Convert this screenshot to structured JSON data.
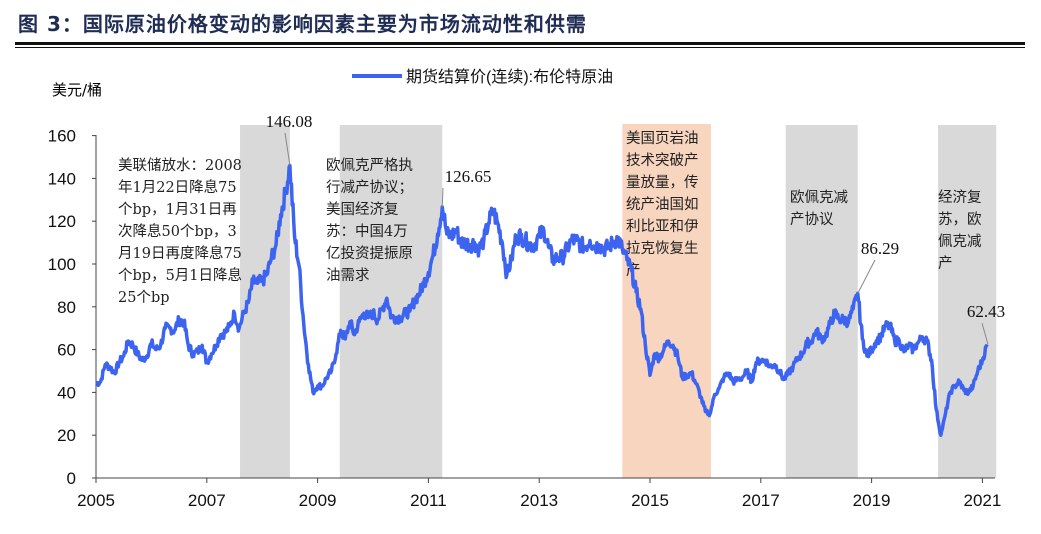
{
  "title": "图 3：国际原油价格变动的影响因素主要为市场流动性和供需",
  "chart_data": {
    "type": "line",
    "ylabel": "美元/桶",
    "xlabel": "",
    "ylim": [
      0,
      160
    ],
    "xlim": [
      2005,
      2021.2
    ],
    "yticks": [
      0,
      20,
      40,
      60,
      80,
      100,
      120,
      140,
      160
    ],
    "xticks": [
      2005,
      2007,
      2009,
      2011,
      2013,
      2015,
      2017,
      2019,
      2021
    ],
    "grid": false,
    "legend_position": "top-center",
    "series": [
      {
        "name": "期货结算价(连续):布伦特原油",
        "color": "#3c64f0",
        "start": "2005-01",
        "frequency": "monthly",
        "values": [
          44,
          45,
          53,
          52,
          49,
          54,
          57,
          64,
          62,
          58,
          55,
          57,
          63,
          60,
          62,
          70,
          70,
          69,
          74,
          73,
          62,
          58,
          59,
          62,
          54,
          58,
          62,
          67,
          68,
          71,
          77,
          70,
          77,
          82,
          92,
          91,
          92,
          95,
          103,
          109,
          123,
          133,
          146.08,
          113,
          99,
          72,
          53,
          40,
          43,
          43,
          47,
          50,
          58,
          69,
          65,
          73,
          67,
          73,
          77,
          75,
          77,
          74,
          79,
          84,
          75,
          75,
          75,
          77,
          78,
          83,
          86,
          91,
          96,
          104,
          114,
          126.65,
          114,
          113,
          116,
          110,
          110,
          109,
          110,
          107,
          111,
          119,
          125,
          119,
          110,
          95,
          102,
          113,
          113,
          111,
          109,
          109,
          113,
          116,
          108,
          102,
          103,
          103,
          107,
          111,
          111,
          109,
          108,
          111,
          108,
          109,
          107,
          108,
          110,
          112,
          107,
          102,
          97,
          87,
          79,
          62,
          48,
          58,
          56,
          60,
          64,
          62,
          57,
          47,
          48,
          49,
          44,
          38,
          31,
          30,
          39,
          42,
          47,
          49,
          45,
          46,
          47,
          50,
          45,
          54,
          55,
          55,
          52,
          53,
          50,
          46,
          49,
          52,
          56,
          58,
          63,
          64,
          69,
          65,
          66,
          72,
          77,
          74,
          74,
          73,
          79,
          86.29,
          65,
          57,
          60,
          64,
          66,
          71,
          71,
          64,
          64,
          59,
          62,
          60,
          63,
          66,
          64,
          55,
          32,
          20,
          30,
          40,
          43,
          45,
          41,
          40,
          43,
          50,
          55,
          62.43
        ]
      }
    ],
    "shaded_periods": [
      {
        "from": 2007.6,
        "to": 2008.5,
        "color": "#d9d9d9",
        "label": "美联储放水：2008年1月22日降息75个bp，1月31日再次降息50个bp，3月19日再度降息75个bp，5月1日降息25个bp"
      },
      {
        "from": 2009.4,
        "to": 2011.25,
        "color": "#d9d9d9",
        "label": "欧佩克严格执行减产协议；美国经济复苏：中国4万亿投资提振原油需求"
      },
      {
        "from": 2014.5,
        "to": 2016.1,
        "color": "#f8d5bf",
        "label": "美国页岩油技术突破产量放量，传统产油国如利比亚和伊拉克恢复生产"
      },
      {
        "from": 2017.45,
        "to": 2018.75,
        "color": "#d9d9d9",
        "label": "欧佩克减产协议"
      },
      {
        "from": 2020.2,
        "to": 2021.25,
        "color": "#d9d9d9",
        "label": "经济复苏，欧佩克减产"
      }
    ],
    "annotations": [
      {
        "text": "146.08",
        "x": 2008.5,
        "y": 146.08
      },
      {
        "text": "126.65",
        "x": 2011.25,
        "y": 126.65
      },
      {
        "text": "86.29",
        "x": 2018.75,
        "y": 86.29
      },
      {
        "text": "62.43",
        "x": 2021.1,
        "y": 62.43
      }
    ]
  },
  "annotation_lines": {
    "p0": [
      "美联储放水：2008",
      "年1月22日降息75",
      "个bp，1月31日再",
      "次降息50个bp，3",
      "月19日再度降息75",
      "个bp，5月1日降息",
      "25个bp"
    ],
    "p1": [
      "欧佩克严格执",
      "行减产协议；",
      "美国经济复",
      "苏：中国4万",
      "亿投资提振原",
      "油需求"
    ],
    "p2": [
      "美国页岩油",
      "技术突破产",
      "量放量，传",
      "统产油国如",
      "利比亚和伊",
      "拉克恢复生",
      "产"
    ],
    "p3": [
      "欧佩克减",
      "产协议"
    ],
    "p4": [
      "经济复",
      "苏，欧",
      "佩克减",
      "产"
    ]
  }
}
